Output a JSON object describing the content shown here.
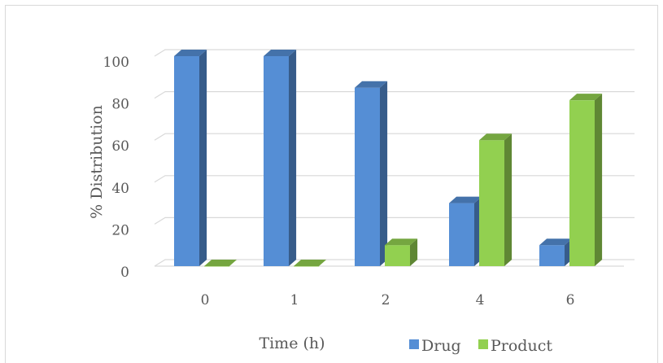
{
  "chart_data": {
    "type": "bar",
    "categories": [
      "0",
      "1",
      "2",
      "4",
      "6"
    ],
    "series": [
      {
        "name": "Drug",
        "values": [
          100,
          100,
          85,
          30,
          10
        ],
        "color": "#558ed5"
      },
      {
        "name": "Product",
        "values": [
          0,
          0,
          10,
          60,
          79
        ],
        "color": "#92d050"
      }
    ],
    "xlabel": "Time (h)",
    "ylabel": "% Distribution",
    "ylim": [
      0,
      100
    ],
    "yticks": [
      "0",
      "20",
      "40",
      "60",
      "80",
      "100"
    ],
    "grid": true,
    "legend_position": "bottom-right",
    "style": "3d-clustered-column"
  }
}
